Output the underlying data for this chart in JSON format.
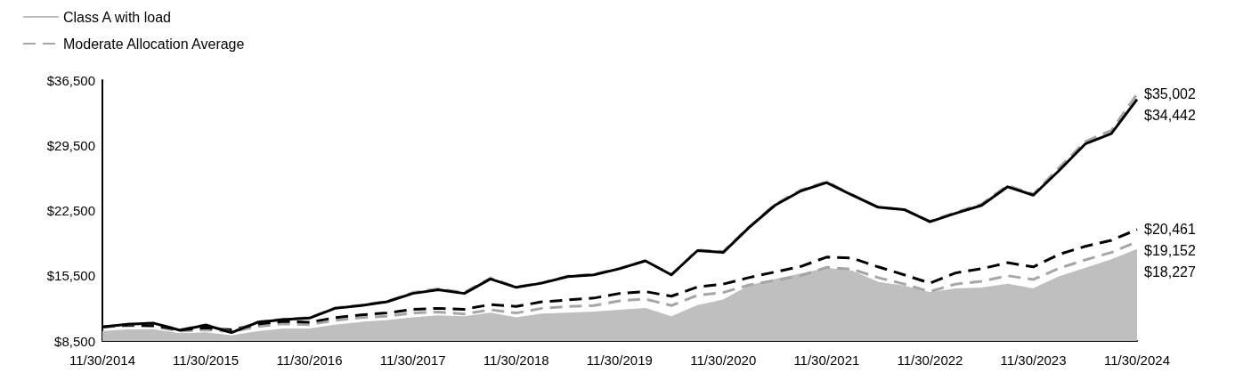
{
  "chart_data": {
    "type": "line",
    "x": [
      "2014-11-30",
      "2015-02-28",
      "2015-05-31",
      "2015-08-31",
      "2015-11-30",
      "2016-02-29",
      "2016-05-31",
      "2016-08-31",
      "2016-11-30",
      "2017-02-28",
      "2017-05-31",
      "2017-08-31",
      "2017-11-30",
      "2018-02-28",
      "2018-05-31",
      "2018-08-31",
      "2018-11-30",
      "2019-02-28",
      "2019-05-31",
      "2019-08-31",
      "2019-11-30",
      "2020-02-29",
      "2020-05-31",
      "2020-08-31",
      "2020-11-30",
      "2021-02-28",
      "2021-05-31",
      "2021-08-31",
      "2021-11-30",
      "2022-02-28",
      "2022-05-31",
      "2022-08-31",
      "2022-11-30",
      "2023-02-28",
      "2023-05-31",
      "2023-08-31",
      "2023-11-30",
      "2024-02-29",
      "2024-05-31",
      "2024-08-31",
      "2024-11-30"
    ],
    "series": [
      {
        "name": "Class A with load",
        "type": "area",
        "color": "#bfbfbf",
        "line_style": "solid",
        "values": [
          9425,
          9600,
          9600,
          9200,
          9300,
          8950,
          9400,
          9700,
          9700,
          10100,
          10400,
          10600,
          10900,
          11100,
          11000,
          11400,
          10900,
          11300,
          11400,
          11500,
          11700,
          11900,
          11000,
          12200,
          12800,
          14300,
          15000,
          15600,
          16200,
          15900,
          14700,
          14300,
          13600,
          14000,
          14100,
          14500,
          14000,
          15300,
          16200,
          17100,
          18227
        ],
        "value_labels": [
          null,
          null,
          null,
          null,
          null,
          null,
          null,
          null,
          null,
          null,
          null,
          null,
          null,
          null,
          null,
          null,
          null,
          null,
          null,
          null,
          null,
          null,
          null,
          null,
          null,
          null,
          null,
          null,
          null,
          null,
          null,
          null,
          null,
          null,
          null,
          null,
          null,
          null,
          null,
          null,
          "$18,227"
        ]
      },
      {
        "name": "Moderate Allocation Average",
        "color": "#a6a6a6",
        "line_style": "dashed",
        "values": [
          10000,
          10150,
          10050,
          9550,
          9700,
          9500,
          10050,
          10350,
          10250,
          10700,
          11000,
          11150,
          11500,
          11600,
          11400,
          11850,
          11500,
          12000,
          12200,
          12300,
          12800,
          13000,
          12300,
          13400,
          13700,
          14500,
          15000,
          15500,
          16400,
          16200,
          15300,
          14600,
          13800,
          14600,
          14900,
          15500,
          15100,
          16300,
          17200,
          18000,
          19152
        ],
        "value_labels": [
          null,
          null,
          null,
          null,
          null,
          null,
          null,
          null,
          null,
          null,
          null,
          null,
          null,
          null,
          null,
          null,
          null,
          null,
          null,
          null,
          null,
          null,
          null,
          null,
          null,
          null,
          null,
          null,
          null,
          null,
          null,
          null,
          null,
          null,
          null,
          null,
          null,
          null,
          null,
          null,
          "$19,152"
        ]
      },
      {
        "color": "#000000",
        "line_style": "dashed",
        "values": [
          10000,
          10200,
          10150,
          9700,
          9900,
          9700,
          10300,
          10600,
          10500,
          11000,
          11300,
          11500,
          11900,
          12000,
          11900,
          12400,
          12200,
          12700,
          12900,
          13100,
          13600,
          13800,
          13300,
          14300,
          14600,
          15300,
          15900,
          16500,
          17500,
          17400,
          16450,
          15600,
          14700,
          15800,
          16250,
          16900,
          16450,
          17800,
          18650,
          19300,
          20461
        ],
        "value_labels": [
          null,
          null,
          null,
          null,
          null,
          null,
          null,
          null,
          null,
          null,
          null,
          null,
          null,
          null,
          null,
          null,
          null,
          null,
          null,
          null,
          null,
          null,
          null,
          null,
          null,
          null,
          null,
          null,
          null,
          null,
          null,
          null,
          null,
          null,
          null,
          null,
          null,
          null,
          null,
          null,
          "$20,461"
        ]
      },
      {
        "color": "#a6a6a6",
        "line_style": "dashed",
        "values": [
          10000,
          10300,
          10400,
          9700,
          10250,
          9450,
          10550,
          10850,
          11000,
          12050,
          12350,
          12750,
          13700,
          14100,
          13700,
          15250,
          14300,
          14750,
          15450,
          15650,
          16300,
          17100,
          15600,
          18250,
          18100,
          20700,
          23150,
          24700,
          25600,
          24200,
          22850,
          22600,
          21350,
          22300,
          23200,
          25200,
          24250,
          27100,
          29900,
          31100,
          35002
        ],
        "value_labels": [
          null,
          null,
          null,
          null,
          null,
          null,
          null,
          null,
          null,
          null,
          null,
          null,
          null,
          null,
          null,
          null,
          null,
          null,
          null,
          null,
          null,
          null,
          null,
          null,
          null,
          null,
          null,
          null,
          null,
          null,
          null,
          null,
          null,
          null,
          null,
          null,
          null,
          null,
          null,
          null,
          "$35,002"
        ]
      },
      {
        "color": "#000000",
        "line_style": "solid",
        "values": [
          10000,
          10300,
          10400,
          9650,
          10200,
          9400,
          10500,
          10800,
          10950,
          12000,
          12300,
          12700,
          13600,
          14000,
          13600,
          15150,
          14250,
          14700,
          15400,
          15600,
          16250,
          17100,
          15600,
          18200,
          18000,
          20650,
          23050,
          24600,
          25500,
          24150,
          22850,
          22600,
          21300,
          22200,
          23050,
          25050,
          24150,
          26800,
          29650,
          30750,
          34442
        ],
        "value_labels": [
          null,
          null,
          null,
          null,
          null,
          null,
          null,
          null,
          null,
          null,
          null,
          null,
          null,
          null,
          null,
          null,
          null,
          null,
          null,
          null,
          null,
          null,
          null,
          null,
          null,
          null,
          null,
          null,
          null,
          null,
          null,
          null,
          null,
          null,
          null,
          null,
          null,
          null,
          null,
          null,
          "$34,442"
        ]
      }
    ],
    "xlim": [
      "2014-11-30",
      "2024-11-30"
    ],
    "xticks": [
      {
        "value": "2014-11-30",
        "label": "11/30/2014"
      },
      {
        "value": "2015-11-30",
        "label": "11/30/2015"
      },
      {
        "value": "2016-11-30",
        "label": "11/30/2016"
      },
      {
        "value": "2017-11-30",
        "label": "11/30/2017"
      },
      {
        "value": "2018-11-30",
        "label": "11/30/2018"
      },
      {
        "value": "2019-11-30",
        "label": "11/30/2019"
      },
      {
        "value": "2020-11-30",
        "label": "11/30/2020"
      },
      {
        "value": "2021-11-30",
        "label": "11/30/2021"
      },
      {
        "value": "2022-11-30",
        "label": "11/30/2022"
      },
      {
        "value": "2023-11-30",
        "label": "11/30/2023"
      },
      {
        "value": "2024-11-30",
        "label": "11/30/2024"
      }
    ],
    "ylim": [
      8500,
      36500
    ],
    "yticks": [
      {
        "value": 8500,
        "label": "$8,500"
      },
      {
        "value": 15500,
        "label": "$15,500"
      },
      {
        "value": 22500,
        "label": "$22,500"
      },
      {
        "value": 29500,
        "label": "$29,500"
      },
      {
        "value": 36500,
        "label": "$36,500"
      }
    ],
    "grid": false,
    "legend": "top left",
    "marker": "none"
  }
}
